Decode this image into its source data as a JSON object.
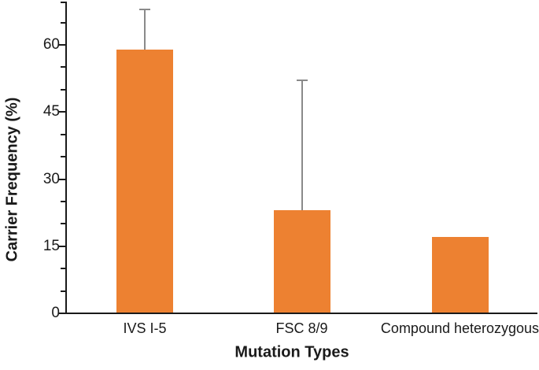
{
  "chart_data": {
    "type": "bar",
    "title": "",
    "categories": [
      "IVS I-5",
      "FSC 8/9",
      "Compound heterozygous"
    ],
    "values": [
      59,
      23,
      17
    ],
    "errors_plus": [
      9,
      29,
      0
    ],
    "xlabel": "Mutation Types",
    "ylabel": "Carrier Frequency (%)",
    "ylim": [
      0,
      70
    ],
    "yticks_major": [
      0,
      15,
      30,
      45,
      60
    ],
    "ytick_minor_step": 5,
    "grid": false,
    "legend_position": "none",
    "bar_color": "#ED8131",
    "error_bar_color": "#8A8A8A",
    "axis_color": "#1A1A1A",
    "text_color": "#1A1A1A",
    "background_color": "#FFFFFF"
  }
}
